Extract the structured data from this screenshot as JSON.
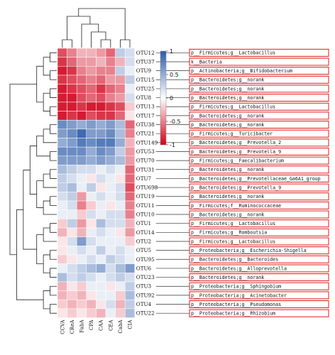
{
  "chart_data": {
    "type": "heatmap",
    "title": "",
    "xlabel": "",
    "ylabel": "",
    "colorscale": {
      "range": [
        -1,
        1
      ],
      "ticks": [
        1,
        0.5,
        0,
        -0.5,
        -1
      ],
      "ticks_text": [
        "1",
        "0.5",
        "0",
        "-0.5",
        "-1"
      ],
      "low_color": "#d0021b",
      "mid_color": "#ffffff",
      "high_color": "#2b5aa8"
    },
    "columns": [
      "CCVA",
      "CReA",
      "FabA",
      "CPA",
      "CAA",
      "CEA",
      "CabA",
      "CIA"
    ],
    "rows": [
      {
        "otu": "OTU12",
        "taxon": "p__Firmicutes;g__Lactobacillus",
        "values": [
          -0.7,
          -0.5,
          -0.3,
          -0.3,
          -0.4,
          -0.6,
          0.3,
          0.2
        ]
      },
      {
        "otu": "OTU37",
        "taxon": "k__Bacteria",
        "values": [
          -0.8,
          -0.6,
          -0.4,
          -0.4,
          -0.3,
          -0.5,
          -0.3,
          0.2
        ]
      },
      {
        "otu": "OTU9",
        "taxon": "p__Actinobacteria;g__Bifidobacterium",
        "values": [
          -0.9,
          -0.8,
          -0.5,
          -0.4,
          -0.5,
          -0.5,
          0.3,
          0.1
        ]
      },
      {
        "otu": "OTU15",
        "taxon": "p__Bacteroidetes;g__norank",
        "values": [
          -0.8,
          -0.7,
          -0.6,
          -0.5,
          -0.6,
          -0.4,
          -0.4,
          0.3
        ]
      },
      {
        "otu": "OTU25",
        "taxon": "p__Bacteroidetes;g__norank",
        "values": [
          -0.9,
          -0.8,
          -0.7,
          -0.6,
          -0.8,
          -0.6,
          -0.5,
          0.1
        ]
      },
      {
        "otu": "OTU8",
        "taxon": "p__Bacteroidetes;g__norank",
        "values": [
          -0.9,
          -0.9,
          -0.7,
          -0.6,
          -0.7,
          -0.5,
          -0.4,
          0.2
        ]
      },
      {
        "otu": "OTU13",
        "taxon": "p__Firmicutes;g__Lactobacillus",
        "values": [
          -0.9,
          -0.9,
          -0.8,
          -0.9,
          -0.9,
          -0.8,
          -0.7,
          -0.2
        ]
      },
      {
        "otu": "OTU17",
        "taxon": "p__Bacteroidetes;g__norank",
        "values": [
          -0.9,
          -0.8,
          -0.9,
          -0.7,
          -0.8,
          -0.8,
          -0.6,
          -0.1
        ]
      },
      {
        "otu": "OTU38",
        "taxon": "p__Bacteroidetes;g__norank",
        "values": [
          0.7,
          0.6,
          0.5,
          0.6,
          0.5,
          0.6,
          0.4,
          -0.6
        ]
      },
      {
        "otu": "OTU21",
        "taxon": "p__Firmicutes;g__Turicibacter",
        "values": [
          0.6,
          0.7,
          0.9,
          0.6,
          0.6,
          0.7,
          0.4,
          -0.5
        ]
      },
      {
        "otu": "OTU149",
        "taxon": "p__Bacteroidetes;g__Prevotella_2",
        "values": [
          0.5,
          0.6,
          0.8,
          0.7,
          0.8,
          0.8,
          0.5,
          -0.3
        ]
      },
      {
        "otu": "OTU53",
        "taxon": "p__Bacteroidetes;g__Prevotella_9",
        "values": [
          0.7,
          0.7,
          0.7,
          0.5,
          0.7,
          0.6,
          0.3,
          -0.4
        ]
      },
      {
        "otu": "OTU70",
        "taxon": "p__Firmicutes;g__Faecalibacterium",
        "values": [
          0.6,
          0.6,
          0.6,
          0.5,
          0.6,
          0.5,
          0.4,
          -0.4
        ]
      },
      {
        "otu": "OTU31",
        "taxon": "p__Bacteroidetes;g__norank",
        "values": [
          0.4,
          0.3,
          0.2,
          0.2,
          0.1,
          0.2,
          0.1,
          -0.6
        ]
      },
      {
        "otu": "OTU7",
        "taxon": "p__Bacteroidetes;g__Prevotellaceae_Ga6A1_group",
        "values": [
          0.3,
          0.2,
          0.1,
          -0.1,
          0.2,
          0.1,
          -0.1,
          -0.6
        ]
      },
      {
        "otu": "OTU698",
        "taxon": "p__Bacteroidetes;g__Prevotella_9",
        "values": [
          0.3,
          0.4,
          0.1,
          0.3,
          -0.1,
          0.1,
          0.2,
          -0.7
        ]
      },
      {
        "otu": "OTU19",
        "taxon": "p__Bacteroidetes;g__norank",
        "values": [
          0.2,
          0.3,
          -0.4,
          0.1,
          0.2,
          0.1,
          0.2,
          -0.6
        ]
      },
      {
        "otu": "OTU11",
        "taxon": "p__Firmicutes;f__Ruminococcaceae",
        "values": [
          0.1,
          0.2,
          -0.5,
          -0.2,
          0.1,
          -0.1,
          0.1,
          -0.5
        ]
      },
      {
        "otu": "OTU10",
        "taxon": "p__Bacteroidetes;g__norank",
        "values": [
          0.1,
          0.1,
          -0.2,
          0.2,
          0.1,
          0.2,
          0.2,
          -0.5
        ]
      },
      {
        "otu": "OTU1",
        "taxon": "p__Firmicutes;g__Lactobacillus",
        "values": [
          -0.2,
          0.3,
          -0.4,
          -0.1,
          0.4,
          0.2,
          0.2,
          -0.3
        ]
      },
      {
        "otu": "OTU14",
        "taxon": "p__Firmicutes;g__Romboutsia",
        "values": [
          -0.3,
          -0.1,
          -0.3,
          0.1,
          0.2,
          0.1,
          -0.1,
          -0.4
        ]
      },
      {
        "otu": "OTU2",
        "taxon": "p__Firmicutes;g__Lactobacillus",
        "values": [
          -0.1,
          0.2,
          0.6,
          0.2,
          0.1,
          0.1,
          0.1,
          -0.2
        ]
      },
      {
        "otu": "OTU5",
        "taxon": "p__Proteobacteria;g__Escherichia-Shigella",
        "values": [
          -0.1,
          0.1,
          0.2,
          0.1,
          0.3,
          0.1,
          0.2,
          0.1
        ]
      },
      {
        "otu": "OTU95",
        "taxon": "p__Bacteroidetes;g__Bacteroides",
        "values": [
          -0.2,
          -0.1,
          0.1,
          0.2,
          0.1,
          0.3,
          0.2,
          0.1
        ]
      },
      {
        "otu": "OTU6",
        "taxon": "p__Bacteroidetes;g__Alloprevotella",
        "values": [
          0.1,
          0.2,
          0.3,
          0.4,
          0.5,
          0.2,
          0.4,
          0.6
        ]
      },
      {
        "otu": "OTU23",
        "taxon": "p__Bacteroidetes;g__norank",
        "values": [
          0.4,
          0.2,
          0.3,
          0.2,
          0.1,
          0.2,
          0.3,
          0.2
        ]
      },
      {
        "otu": "OTU3",
        "taxon": "p__Proteobacteria;g__Sphingobium",
        "values": [
          -0.3,
          -0.1,
          -0.2,
          0.1,
          0.1,
          -0.1,
          0.1,
          0.3
        ]
      },
      {
        "otu": "OTU92",
        "taxon": "p__Proteobacteria;g__Acinetobacter",
        "values": [
          -0.3,
          -0.2,
          -0.3,
          -0.1,
          0.1,
          0.1,
          -0.2,
          0.4
        ]
      },
      {
        "otu": "OTU4",
        "taxon": "p__Proteobacteria;g__Pseudomonas",
        "values": [
          -0.2,
          -0.3,
          -0.2,
          -0.3,
          -0.1,
          0.2,
          -0.3,
          0.3
        ]
      },
      {
        "otu": "OTU22",
        "taxon": "p__Proteobacteria;g__Rhizobium",
        "values": [
          -0.1,
          -0.2,
          -0.1,
          -0.2,
          -0.3,
          0.1,
          -0.2,
          0.4
        ]
      }
    ]
  }
}
